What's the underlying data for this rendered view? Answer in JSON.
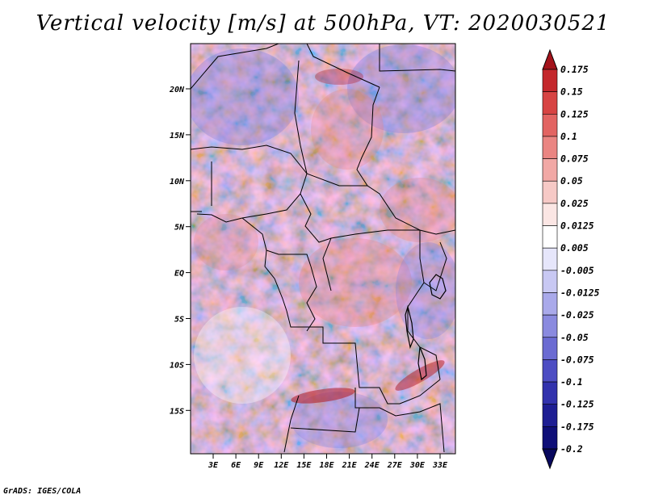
{
  "title": "Vertical velocity [m/s] at 500hPa, VT: 2020030521",
  "footer": "GrADS: IGES/COLA",
  "map": {
    "lon_labels": [
      "3E",
      "6E",
      "9E",
      "12E",
      "15E",
      "18E",
      "21E",
      "24E",
      "27E",
      "30E",
      "33E"
    ],
    "lat_labels": [
      "20N",
      "15N",
      "10N",
      "5N",
      "EQ",
      "5S",
      "10S",
      "15S"
    ]
  },
  "colorbar": {
    "labels": [
      "0.175",
      "0.15",
      "0.125",
      "0.1",
      "0.075",
      "0.05",
      "0.025",
      "0.0125",
      "0.005",
      "-0.005",
      "-0.0125",
      "-0.025",
      "-0.05",
      "-0.075",
      "-0.1",
      "-0.125",
      "-0.175",
      "-0.2"
    ],
    "colors": [
      "#a3131b",
      "#c4282c",
      "#d74443",
      "#e26462",
      "#ea8582",
      "#f1a8a5",
      "#f6c9c6",
      "#fbe6e4",
      "#ffffff",
      "#e6e6fb",
      "#c8c8f3",
      "#a9a9ea",
      "#8a8adf",
      "#6b6bd2",
      "#4d4dc3",
      "#3232ad",
      "#1e1e93",
      "#0f0f78",
      "#08085e"
    ]
  }
}
